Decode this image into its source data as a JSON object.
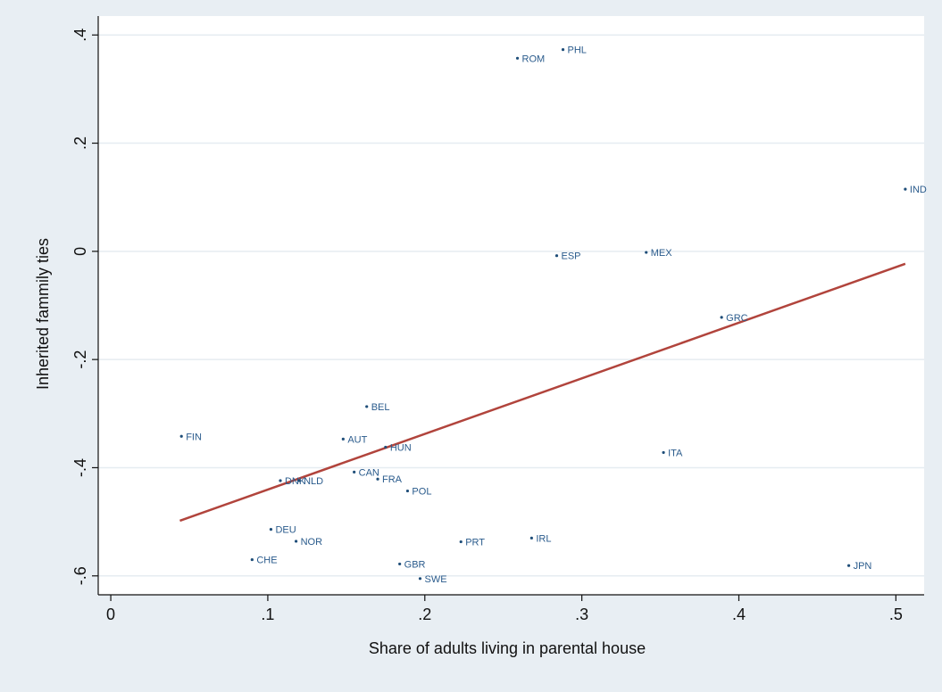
{
  "chart_data": {
    "type": "scatter",
    "xlabel": "Share of adults living in parental house",
    "ylabel": "Inherited fammily ties",
    "xlim": [
      -0.008,
      0.518
    ],
    "ylim": [
      -0.635,
      0.435
    ],
    "x_ticks": [
      {
        "value": 0,
        "label": "0"
      },
      {
        "value": 0.1,
        "label": ".1"
      },
      {
        "value": 0.2,
        "label": ".2"
      },
      {
        "value": 0.3,
        "label": ".3"
      },
      {
        "value": 0.4,
        "label": ".4"
      },
      {
        "value": 0.5,
        "label": ".5"
      }
    ],
    "y_ticks": [
      {
        "value": 0.4,
        "label": ".4"
      },
      {
        "value": 0.2,
        "label": ".2"
      },
      {
        "value": 0,
        "label": "0"
      },
      {
        "value": -0.2,
        "label": "-.2"
      },
      {
        "value": -0.4,
        "label": "-.4"
      },
      {
        "value": -0.6,
        "label": "-.6"
      }
    ],
    "grid": "horizontal",
    "points": [
      {
        "label": "PHL",
        "x": 0.288,
        "y": 0.373
      },
      {
        "label": "ROM",
        "x": 0.259,
        "y": 0.357
      },
      {
        "label": "IND",
        "x": 0.506,
        "y": 0.115
      },
      {
        "label": "ESP",
        "x": 0.284,
        "y": -0.008
      },
      {
        "label": "MEX",
        "x": 0.341,
        "y": -0.002
      },
      {
        "label": "GRC",
        "x": 0.389,
        "y": -0.122
      },
      {
        "label": "BEL",
        "x": 0.163,
        "y": -0.287
      },
      {
        "label": "FIN",
        "x": 0.045,
        "y": -0.342
      },
      {
        "label": "AUT",
        "x": 0.148,
        "y": -0.347
      },
      {
        "label": "HUN",
        "x": 0.175,
        "y": -0.362
      },
      {
        "label": "ITA",
        "x": 0.352,
        "y": -0.372
      },
      {
        "label": "CAN",
        "x": 0.155,
        "y": -0.408
      },
      {
        "label": "FRA",
        "x": 0.17,
        "y": -0.421
      },
      {
        "label": "DNK",
        "x": 0.108,
        "y": -0.424
      },
      {
        "label": "NLD",
        "x": 0.12,
        "y": -0.424
      },
      {
        "label": "POL",
        "x": 0.189,
        "y": -0.443
      },
      {
        "label": "DEU",
        "x": 0.102,
        "y": -0.514
      },
      {
        "label": "NOR",
        "x": 0.118,
        "y": -0.536
      },
      {
        "label": "PRT",
        "x": 0.223,
        "y": -0.537
      },
      {
        "label": "IRL",
        "x": 0.268,
        "y": -0.53
      },
      {
        "label": "CHE",
        "x": 0.09,
        "y": -0.57
      },
      {
        "label": "GBR",
        "x": 0.184,
        "y": -0.578
      },
      {
        "label": "JPN",
        "x": 0.47,
        "y": -0.581
      },
      {
        "label": "SWE",
        "x": 0.197,
        "y": -0.605
      }
    ],
    "fit_line": {
      "x": [
        0.044,
        0.506
      ],
      "y": [
        -0.498,
        -0.023
      ],
      "color": "#b1443c"
    },
    "colors": {
      "background": "#e8eef3",
      "plot_area": "#ffffff",
      "gridline": "#e6ecf1",
      "point": "#1f4e79",
      "point_label": "#2a5b8c",
      "axis": "#111111"
    }
  }
}
